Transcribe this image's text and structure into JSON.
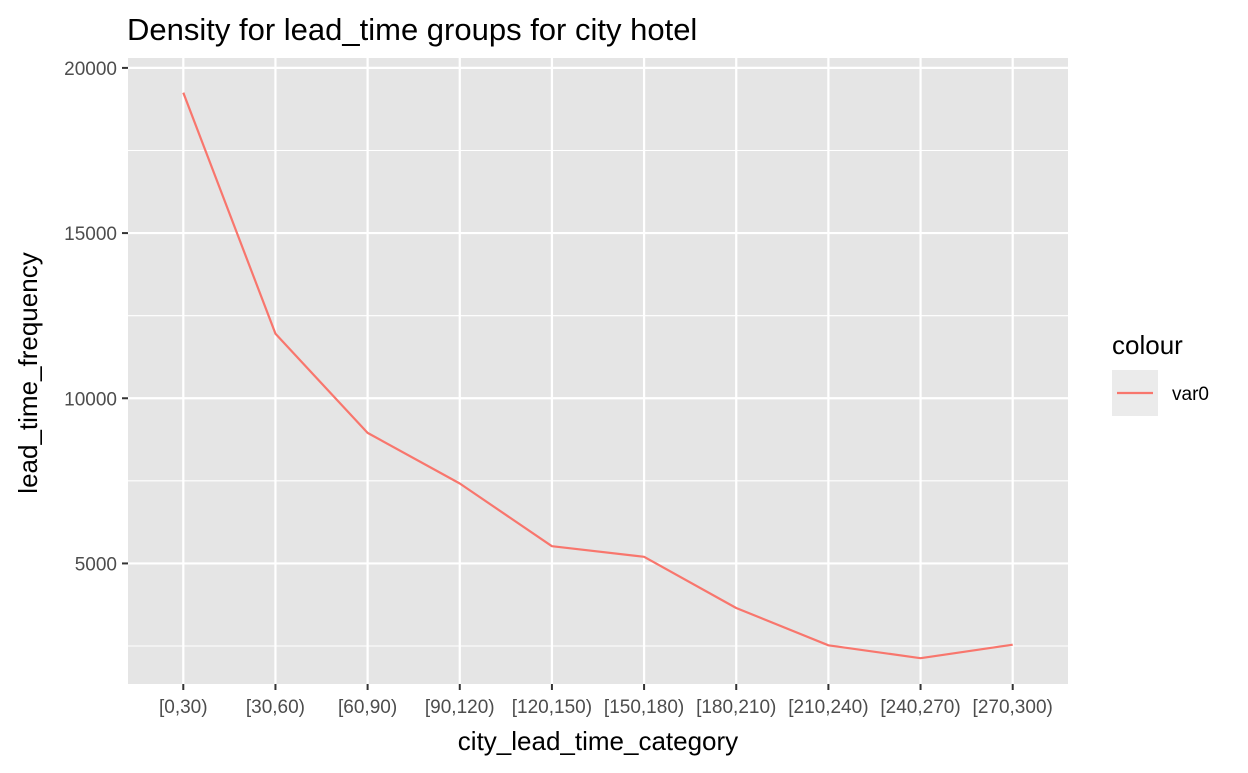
{
  "chart_data": {
    "type": "line",
    "title": "Density for lead_time groups for city hotel",
    "xlabel": "city_lead_time_category",
    "ylabel": "lead_time_frequency",
    "categories": [
      "[0,30)",
      "[30,60)",
      "[60,90)",
      "[90,120)",
      "[120,150)",
      "[150,180)",
      "[180,210)",
      "[210,240)",
      "[240,270)",
      "[270,300)"
    ],
    "series": [
      {
        "name": "var0",
        "color": "#f8766d",
        "values": [
          19250,
          11950,
          8950,
          7420,
          5520,
          5200,
          3650,
          2520,
          2130,
          2540
        ]
      }
    ],
    "ylim": [
      1350,
      20300
    ],
    "yticks": [
      5000,
      10000,
      15000,
      20000
    ],
    "yticklabels": [
      "5000",
      "10000",
      "15000",
      "20000"
    ],
    "grid": true,
    "legend": {
      "title": "colour",
      "position": "right"
    },
    "background": "#e5e5e5"
  }
}
